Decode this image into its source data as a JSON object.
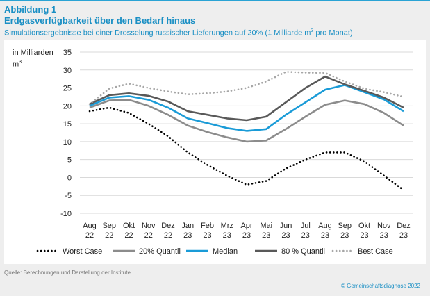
{
  "figure": {
    "label": "Abbildung 1",
    "title": "Erdgasverfügbarkeit über den Bedarf hinaus",
    "subtitle_pre": "Simulationsergebnisse bei einer Drosselung russischer Lieferungen auf 20% (1 Milliarde m",
    "subtitle_sup": "3",
    "subtitle_post": " pro Monat)",
    "source": "Quelle: Berechnungen und Darstellung der Institute.",
    "credit": "© Gemeinschaftsdiagnose 2022"
  },
  "chart_data": {
    "type": "line",
    "ylabel_line1": "in Milliarden",
    "ylabel_line2": "m",
    "ylabel_sup": "3",
    "ylim": [
      -10,
      35
    ],
    "yticks": [
      35,
      30,
      25,
      20,
      15,
      10,
      5,
      0,
      -5,
      -10
    ],
    "grid": true,
    "legend_position": "bottom",
    "categories": [
      [
        "Aug",
        "22"
      ],
      [
        "Sep",
        "22"
      ],
      [
        "Okt",
        "22"
      ],
      [
        "Nov",
        "22"
      ],
      [
        "Dez",
        "22"
      ],
      [
        "Jan",
        "23"
      ],
      [
        "Feb",
        "23"
      ],
      [
        "Mrz",
        "23"
      ],
      [
        "Apr",
        "23"
      ],
      [
        "Mai",
        "23"
      ],
      [
        "Jun",
        "23"
      ],
      [
        "Jul",
        "23"
      ],
      [
        "Aug",
        "23"
      ],
      [
        "Sep",
        "23"
      ],
      [
        "Okt",
        "23"
      ],
      [
        "Nov",
        "23"
      ],
      [
        "Dez",
        "23"
      ]
    ],
    "series": [
      {
        "name": "Worst Case",
        "style": "dotted",
        "color": "#000000",
        "values": [
          18.5,
          19.5,
          18.0,
          15.0,
          11.5,
          7.0,
          3.5,
          0.5,
          -2.0,
          -1.0,
          2.5,
          5.0,
          7.0,
          7.0,
          4.5,
          0.5,
          -3.5
        ]
      },
      {
        "name": "20% Quantil",
        "style": "solid",
        "color": "#8c8c8c",
        "values": [
          19.5,
          21.5,
          21.7,
          20.0,
          17.5,
          14.5,
          12.7,
          11.2,
          10.0,
          10.3,
          13.5,
          17.0,
          20.3,
          21.5,
          20.5,
          18.0,
          14.5
        ]
      },
      {
        "name": "Median",
        "style": "solid",
        "color": "#1a9bd7",
        "values": [
          20.0,
          22.3,
          22.7,
          21.7,
          19.5,
          16.5,
          15.2,
          13.8,
          13.0,
          13.5,
          17.5,
          21.0,
          24.5,
          25.8,
          23.8,
          21.8,
          18.5
        ]
      },
      {
        "name": "80 % Quantil",
        "style": "solid",
        "color": "#595959",
        "values": [
          20.5,
          23.0,
          23.5,
          22.8,
          21.2,
          18.5,
          17.5,
          16.5,
          16.0,
          17.0,
          21.0,
          25.0,
          28.2,
          26.0,
          24.2,
          22.3,
          19.5
        ]
      },
      {
        "name": "Best Case",
        "style": "dotted",
        "color": "#a6a6a6",
        "values": [
          20.5,
          24.8,
          26.2,
          25.0,
          24.0,
          23.2,
          23.5,
          24.0,
          25.0,
          26.8,
          29.5,
          29.3,
          29.2,
          26.8,
          24.8,
          23.8,
          22.5
        ]
      }
    ]
  }
}
